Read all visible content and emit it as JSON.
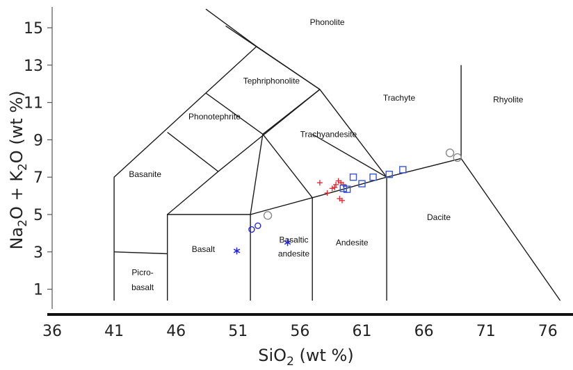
{
  "chart_data": {
    "type": "scatter",
    "title": "",
    "xlabel": "SiO",
    "xlabel_sub": "2",
    "xlabel_rest": " (wt %)",
    "ylabel_parts": [
      "Na",
      "2",
      "O + K",
      "2",
      "O (wt %)"
    ],
    "xlim": [
      36,
      78
    ],
    "ylim": [
      -0.4,
      16.2
    ],
    "x_ticks": [
      36,
      41,
      46,
      51,
      56,
      61,
      66,
      71,
      76
    ],
    "y_ticks": [
      1,
      3,
      5,
      7,
      9,
      11,
      13,
      15
    ],
    "grid": false,
    "fields": [
      {
        "label": "Phonolite",
        "x": 58.2,
        "y": 15.15
      },
      {
        "label": "Tephriphonolite",
        "x": 53.7,
        "y": 12.0
      },
      {
        "label": "Phonotephrite",
        "x": 49.1,
        "y": 10.1
      },
      {
        "label": "Trachyandesite",
        "x": 58.3,
        "y": 9.15
      },
      {
        "label": "Trachyte",
        "x": 64.0,
        "y": 11.1
      },
      {
        "label": "Rhyolite",
        "x": 72.8,
        "y": 11.0
      },
      {
        "label": "Basanite",
        "x": 43.5,
        "y": 7.0
      },
      {
        "label": "Basalt",
        "x": 48.2,
        "y": 3.0
      },
      {
        "label": "Basaltic",
        "x": 55.5,
        "y": 3.5
      },
      {
        "label": "andesite",
        "x": 55.5,
        "y": 2.75
      },
      {
        "label": "Andesite",
        "x": 60.2,
        "y": 3.35
      },
      {
        "label": "Dacite",
        "x": 67.2,
        "y": 4.7
      },
      {
        "label": "Picro-",
        "x": 43.3,
        "y": 1.75
      },
      {
        "label": "basalt",
        "x": 43.3,
        "y": 0.95
      }
    ],
    "boundaries": [
      [
        [
          41,
          0.3
        ],
        [
          41,
          7.0
        ],
        [
          52.5,
          14.0
        ],
        [
          57.6,
          11.7
        ],
        [
          63,
          7.0
        ],
        [
          69,
          8.0
        ],
        [
          77,
          0
        ]
      ],
      [
        [
          45.3,
          0.3
        ],
        [
          45.3,
          5.0
        ],
        [
          52,
          5.0
        ],
        [
          57,
          5.9
        ],
        [
          63,
          7.0
        ]
      ],
      [
        [
          57.6,
          11.7
        ],
        [
          49.4,
          7.3
        ],
        [
          45.3,
          5.0
        ]
      ],
      [
        [
          49.4,
          7.3
        ],
        [
          45.3,
          9.4
        ]
      ],
      [
        [
          53.0,
          9.3
        ],
        [
          48.4,
          11.5
        ]
      ],
      [
        [
          52,
          5.0
        ],
        [
          53.0,
          9.3
        ],
        [
          57.6,
          11.7
        ]
      ],
      [
        [
          52.5,
          14.0
        ],
        [
          48.4,
          16.0
        ]
      ],
      [
        [
          57.6,
          11.7
        ],
        [
          50,
          15.1
        ]
      ],
      [
        [
          69,
          8.0
        ],
        [
          69,
          13.0
        ]
      ],
      [
        [
          41,
          3.0
        ],
        [
          45.3,
          2.9
        ]
      ],
      [
        [
          52,
          0.3
        ],
        [
          52,
          5.0
        ]
      ],
      [
        [
          57,
          0.3
        ],
        [
          57,
          5.9
        ]
      ],
      [
        [
          57.0,
          9.3
        ],
        [
          63,
          7.0
        ],
        [
          63,
          0.0
        ]
      ],
      [
        [
          53.0,
          9.3
        ],
        [
          57,
          5.9
        ]
      ]
    ],
    "series": [
      {
        "marker": "cross",
        "color": "#e8202a",
        "points": [
          [
            57.6,
            6.7
          ],
          [
            58.2,
            6.15
          ],
          [
            58.6,
            6.4
          ],
          [
            58.9,
            6.6
          ],
          [
            59.1,
            6.8
          ],
          [
            59.3,
            6.7
          ],
          [
            59.5,
            6.6
          ],
          [
            58.8,
            6.45
          ],
          [
            59.2,
            5.85
          ],
          [
            59.4,
            5.75
          ]
        ]
      },
      {
        "marker": "square",
        "color": "#3a53d6",
        "points": [
          [
            59.5,
            6.4
          ],
          [
            59.8,
            6.35
          ],
          [
            60.3,
            7.0
          ],
          [
            61.0,
            6.65
          ],
          [
            61.9,
            7.0
          ],
          [
            63.2,
            7.15
          ],
          [
            64.3,
            7.4
          ]
        ]
      },
      {
        "marker": "open-circle",
        "color": "#2424d6",
        "points": [
          [
            52.1,
            4.2
          ],
          [
            52.6,
            4.4
          ]
        ]
      },
      {
        "marker": "open-circle",
        "color": "#888888",
        "points": [
          [
            53.4,
            4.95
          ],
          [
            68.1,
            8.3
          ],
          [
            68.7,
            8.05
          ]
        ]
      },
      {
        "marker": "asterisk",
        "color": "#2424e0",
        "points": [
          [
            50.9,
            3.05
          ],
          [
            55.0,
            3.5
          ]
        ]
      }
    ]
  }
}
